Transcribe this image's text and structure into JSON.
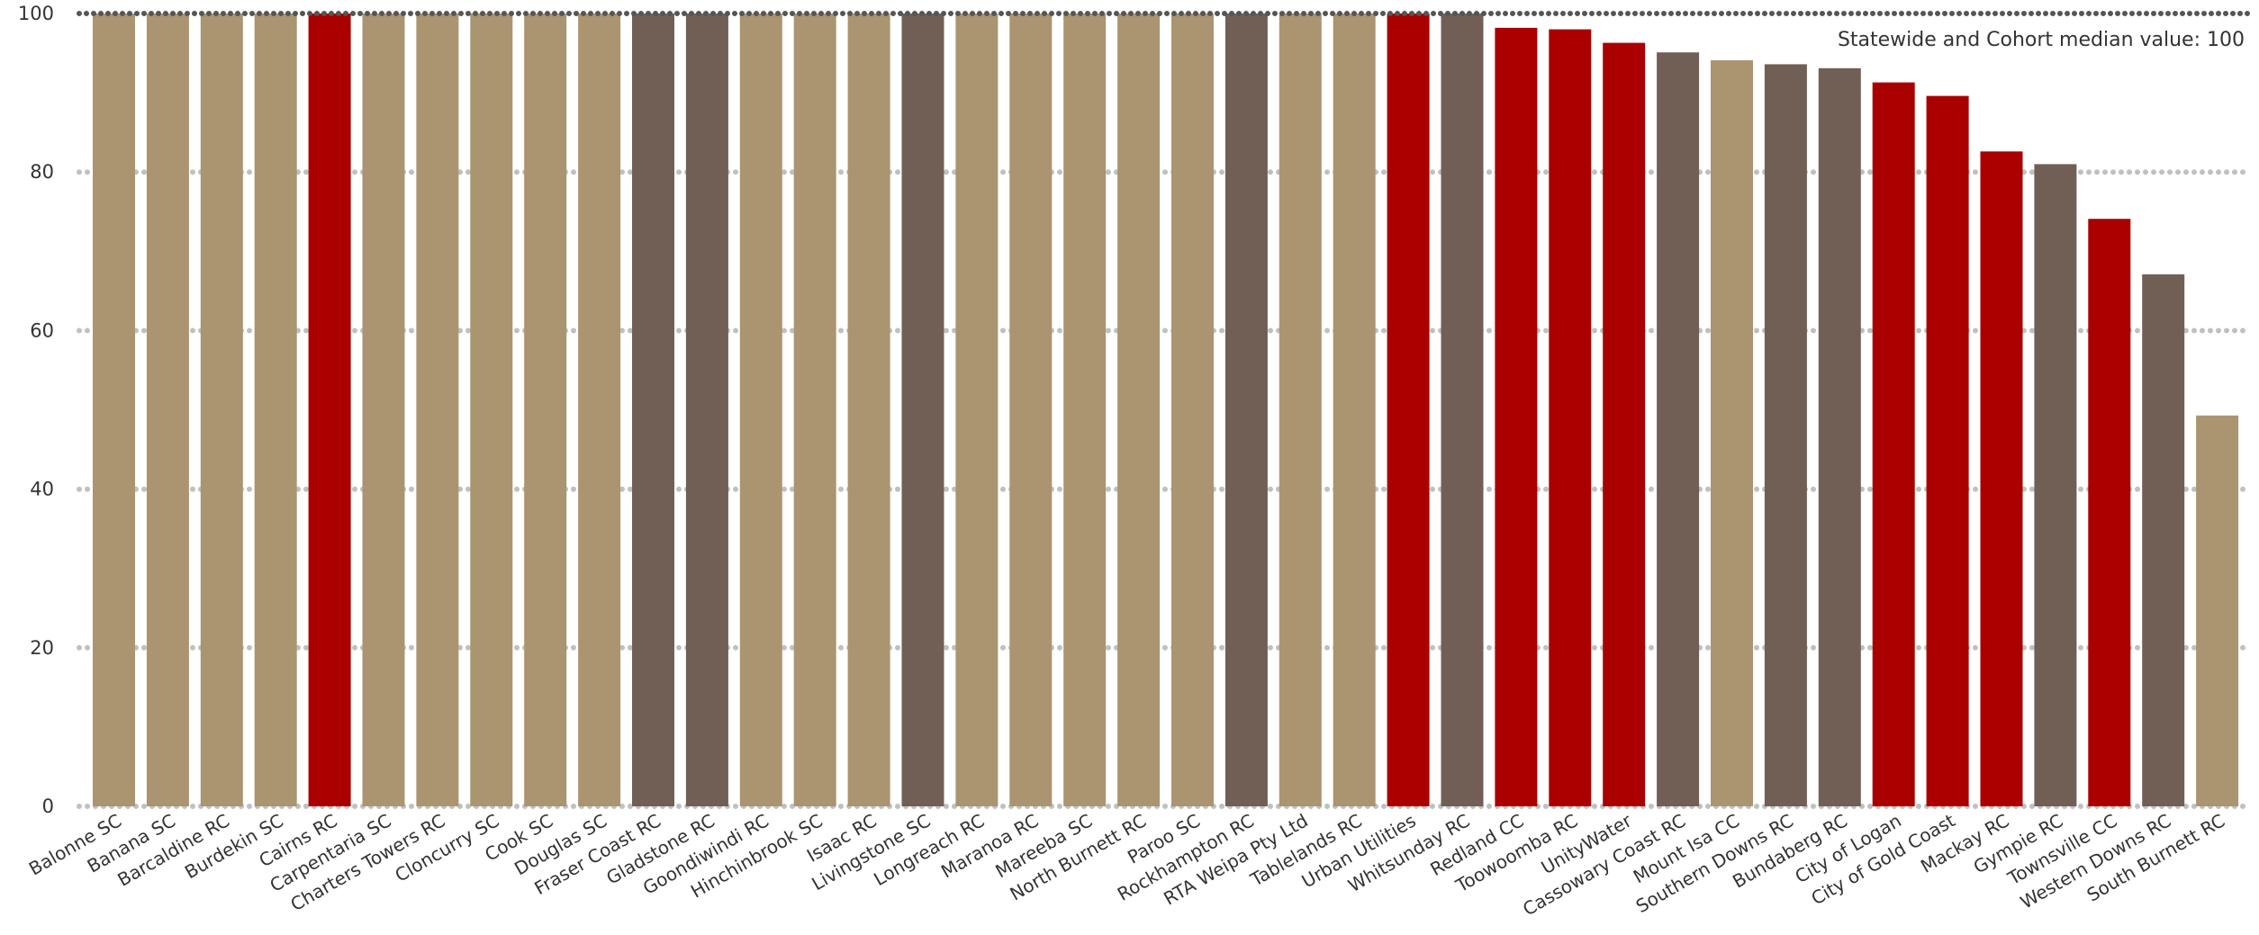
{
  "chart_data": {
    "type": "bar",
    "title": "",
    "xlabel": "",
    "ylabel": "",
    "ylim": [
      0,
      100
    ],
    "yticks": [
      0,
      20,
      40,
      60,
      80,
      100
    ],
    "grid": true,
    "annotation": "Statewide and Cohort median value: 100",
    "colors": {
      "tan": "#ab9470",
      "red": "#aa0000",
      "brown": "#715f55",
      "grid": "#c0c0c0"
    },
    "categories": [
      "Balonne SC",
      "Banana SC",
      "Barcaldine RC",
      "Burdekin SC",
      "Cairns RC",
      "Carpentaria SC",
      "Charters Towers RC",
      "Cloncurry SC",
      "Cook SC",
      "Douglas SC",
      "Fraser Coast RC",
      "Gladstone RC",
      "Goondiwindi RC",
      "Hinchinbrook SC",
      "Isaac RC",
      "Livingstone SC",
      "Longreach RC",
      "Maranoa RC",
      "Mareeba SC",
      "North Burnett RC",
      "Paroo SC",
      "Rockhampton RC",
      "RTA Weipa Pty Ltd",
      "Tablelands RC",
      "Urban Utilities",
      "Whitsunday RC",
      "Redland CC",
      "Toowoomba RC",
      "UnityWater",
      "Cassowary Coast RC",
      "Mount Isa CC",
      "Southern Downs RC",
      "Bundaberg RC",
      "City of Logan",
      "City of Gold Coast",
      "Mackay RC",
      "Gympie RC",
      "Townsville CC",
      "Western Downs RC",
      "South Burnett RC"
    ],
    "values": [
      100,
      100,
      100,
      100,
      100,
      100,
      100,
      100,
      100,
      100,
      100,
      100,
      100,
      100,
      100,
      100,
      100,
      100,
      100,
      100,
      100,
      100,
      100,
      100,
      100,
      100,
      98.2,
      98.0,
      96.3,
      95.1,
      94.1,
      93.6,
      93.1,
      91.3,
      89.6,
      82.6,
      81.0,
      74.1,
      67.1,
      49.3
    ],
    "bar_colors": [
      "tan",
      "tan",
      "tan",
      "tan",
      "red",
      "tan",
      "tan",
      "tan",
      "tan",
      "tan",
      "brown",
      "brown",
      "tan",
      "tan",
      "tan",
      "brown",
      "tan",
      "tan",
      "tan",
      "tan",
      "tan",
      "brown",
      "tan",
      "tan",
      "red",
      "brown",
      "red",
      "red",
      "red",
      "brown",
      "tan",
      "brown",
      "brown",
      "red",
      "red",
      "red",
      "brown",
      "red",
      "brown",
      "tan"
    ]
  }
}
